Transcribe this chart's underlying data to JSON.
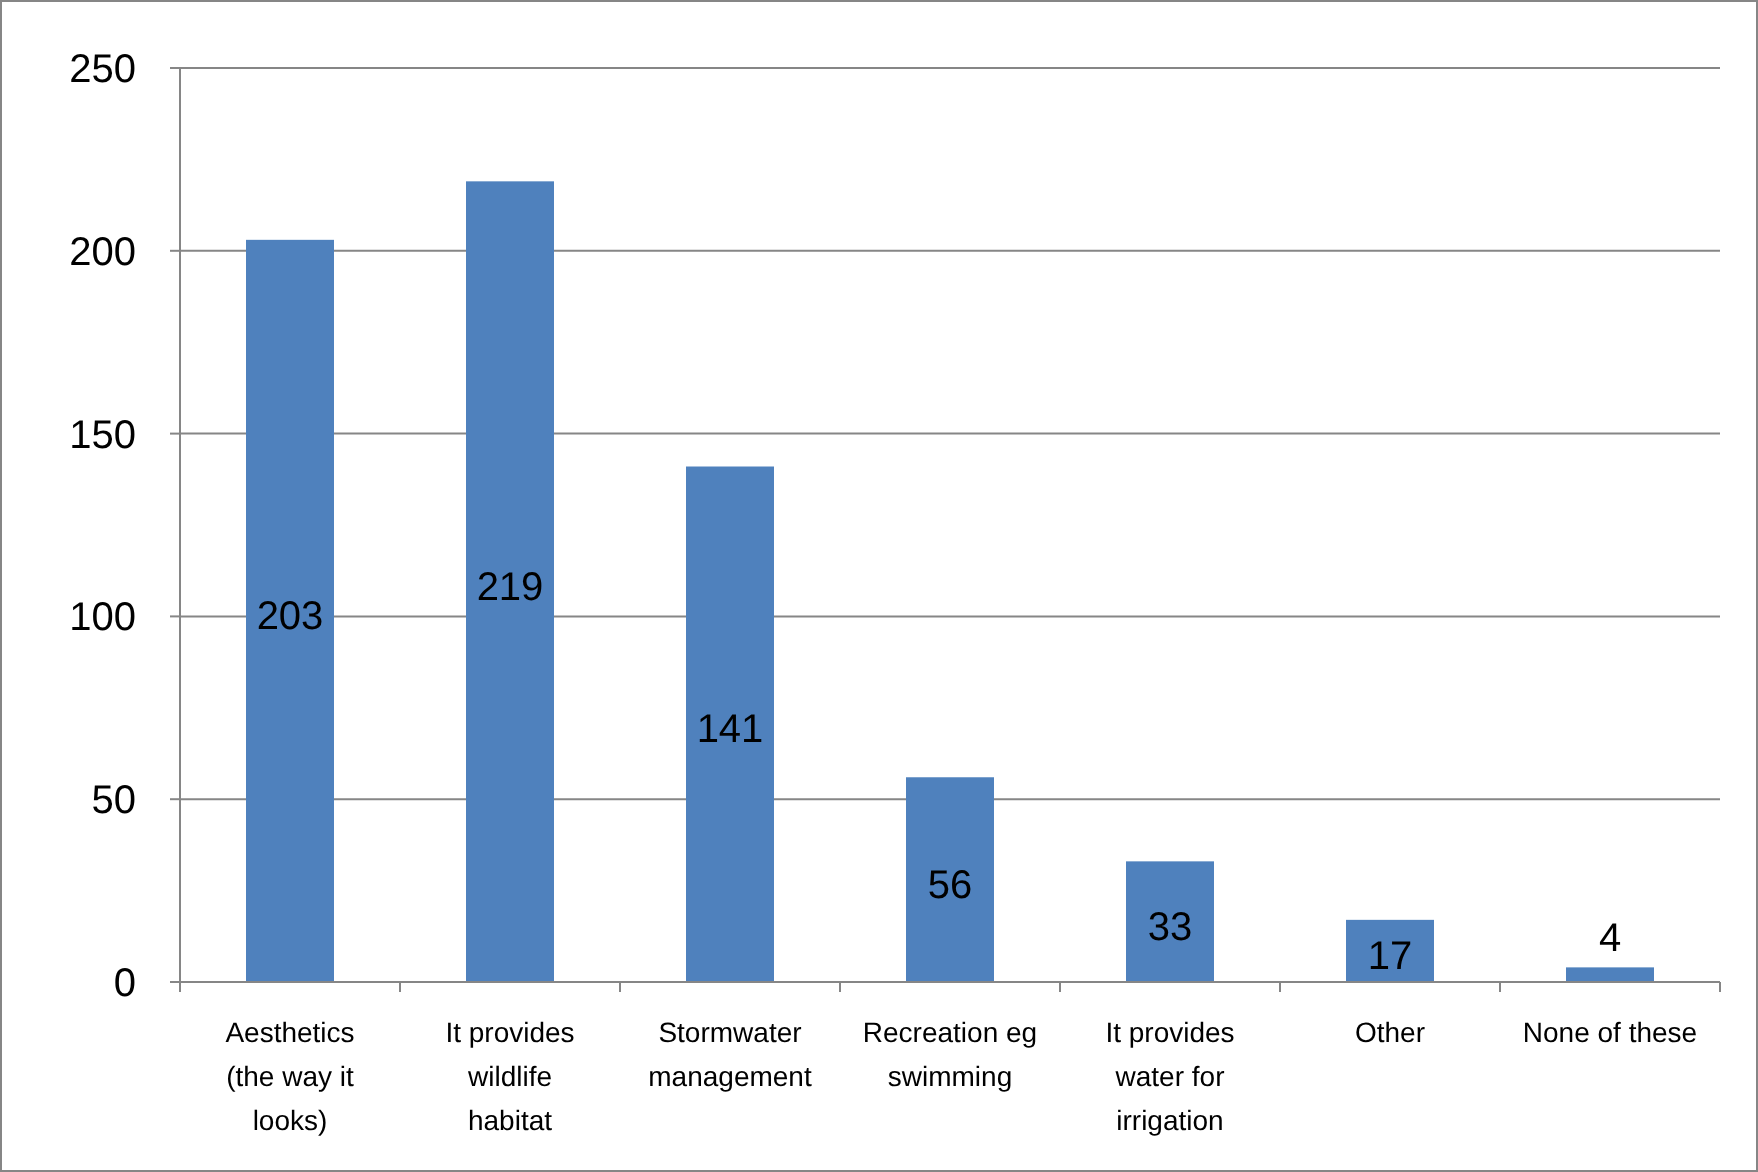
{
  "chart_data": {
    "type": "bar",
    "categories": [
      "Aesthetics (the way it looks)",
      "It provides wildlife habitat",
      "Stormwater management",
      "Recreation eg swimming",
      "It provides water for irrigation",
      "Other",
      "None of these"
    ],
    "values": [
      203,
      219,
      141,
      56,
      33,
      17,
      4
    ],
    "color": "#4f81bd",
    "ylim": [
      0,
      250
    ],
    "yticks": [
      0,
      50,
      100,
      150,
      200,
      250
    ],
    "grid": "y",
    "data_labels": true
  }
}
